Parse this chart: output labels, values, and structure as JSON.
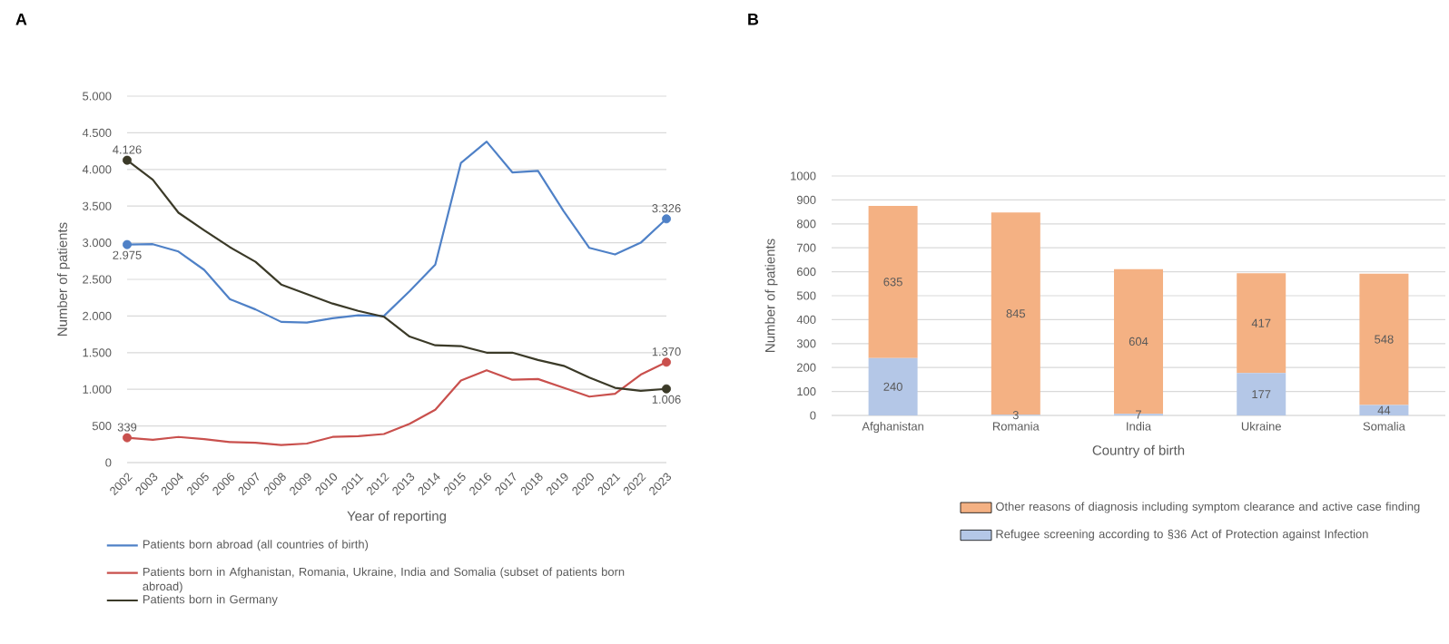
{
  "chart_data": [
    {
      "type": "line",
      "title": "A",
      "xlabel": "Year of reporting",
      "ylabel": "Number of patients",
      "x": [
        2002,
        2003,
        2004,
        2005,
        2006,
        2007,
        2008,
        2009,
        2010,
        2011,
        2012,
        2013,
        2014,
        2015,
        2016,
        2017,
        2018,
        2019,
        2020,
        2021,
        2022,
        2023
      ],
      "xlim": [
        2002,
        2023
      ],
      "xticks": [
        2002,
        2003,
        2004,
        2005,
        2006,
        2007,
        2008,
        2009,
        2010,
        2011,
        2012,
        2013,
        2014,
        2015,
        2016,
        2017,
        2018,
        2019,
        2020,
        2021,
        2022,
        2023
      ],
      "ylim": [
        0,
        5000
      ],
      "yticks": [
        {
          "value": 0,
          "label": "0"
        },
        {
          "value": 500,
          "label": "500"
        },
        {
          "value": 1000,
          "label": "1.000"
        },
        {
          "value": 1500,
          "label": "1.500"
        },
        {
          "value": 2000,
          "label": "2.000"
        },
        {
          "value": 2500,
          "label": "2.500"
        },
        {
          "value": 3000,
          "label": "3.000"
        },
        {
          "value": 3500,
          "label": "3.500"
        },
        {
          "value": 4000,
          "label": "4.000"
        },
        {
          "value": 4500,
          "label": "4.500"
        },
        {
          "value": 5000,
          "label": "5.000"
        }
      ],
      "grid": "y",
      "legend": "bottom",
      "series": [
        {
          "name": "Patients born abroad (all countries of birth)",
          "color": "#4f81c7",
          "values": [
            2975,
            2980,
            2880,
            2630,
            2230,
            2090,
            1920,
            1910,
            1970,
            2010,
            2000,
            2340,
            2700,
            4090,
            4380,
            3960,
            3980,
            3430,
            2930,
            2840,
            3000,
            3326
          ],
          "value_labels": [
            "2.975",
            null,
            null,
            null,
            null,
            null,
            null,
            null,
            null,
            null,
            null,
            null,
            null,
            null,
            null,
            null,
            null,
            null,
            null,
            null,
            null,
            "3.326"
          ]
        },
        {
          "name": "Patients born in Afghanistan, Romania, Ukraine, India and Somalia (subset of patients born abroad)",
          "color": "#c9504d",
          "values": [
            339,
            310,
            350,
            320,
            280,
            270,
            240,
            260,
            350,
            360,
            390,
            530,
            720,
            1120,
            1260,
            1130,
            1140,
            1020,
            900,
            940,
            1200,
            1370
          ],
          "value_labels": [
            "339",
            null,
            null,
            null,
            null,
            null,
            null,
            null,
            null,
            null,
            null,
            null,
            null,
            null,
            null,
            null,
            null,
            null,
            null,
            null,
            null,
            "1.370"
          ]
        },
        {
          "name": "Patients born in Germany",
          "color": "#3b3a28",
          "values": [
            4126,
            3860,
            3410,
            3170,
            2940,
            2740,
            2430,
            2300,
            2170,
            2070,
            1990,
            1720,
            1600,
            1590,
            1500,
            1500,
            1400,
            1320,
            1160,
            1020,
            980,
            1006
          ],
          "value_labels": [
            "4.126",
            null,
            null,
            null,
            null,
            null,
            null,
            null,
            null,
            null,
            null,
            null,
            null,
            null,
            null,
            null,
            null,
            null,
            null,
            null,
            null,
            "1.006"
          ]
        }
      ]
    },
    {
      "type": "bar",
      "title": "B",
      "xlabel": "Country of birth",
      "ylabel": "Number of patients",
      "categories": [
        "Afghanistan",
        "Romania",
        "India",
        "Ukraine",
        "Somalia"
      ],
      "stacked": true,
      "data_labels": true,
      "ylim": [
        0,
        1000
      ],
      "yticks": [
        0,
        100,
        200,
        300,
        400,
        500,
        600,
        700,
        800,
        900,
        1000
      ],
      "grid": "y",
      "legend": "bottom",
      "series": [
        {
          "name": "Refugee screening according to §36 Act of Protection against Infection",
          "color": "#b4c7e7",
          "values": [
            240,
            3,
            7,
            177,
            44
          ]
        },
        {
          "name": "Other reasons of diagnosis including symptom clearance and active case finding",
          "color": "#f4b183",
          "values": [
            635,
            845,
            604,
            417,
            548
          ]
        }
      ]
    }
  ]
}
